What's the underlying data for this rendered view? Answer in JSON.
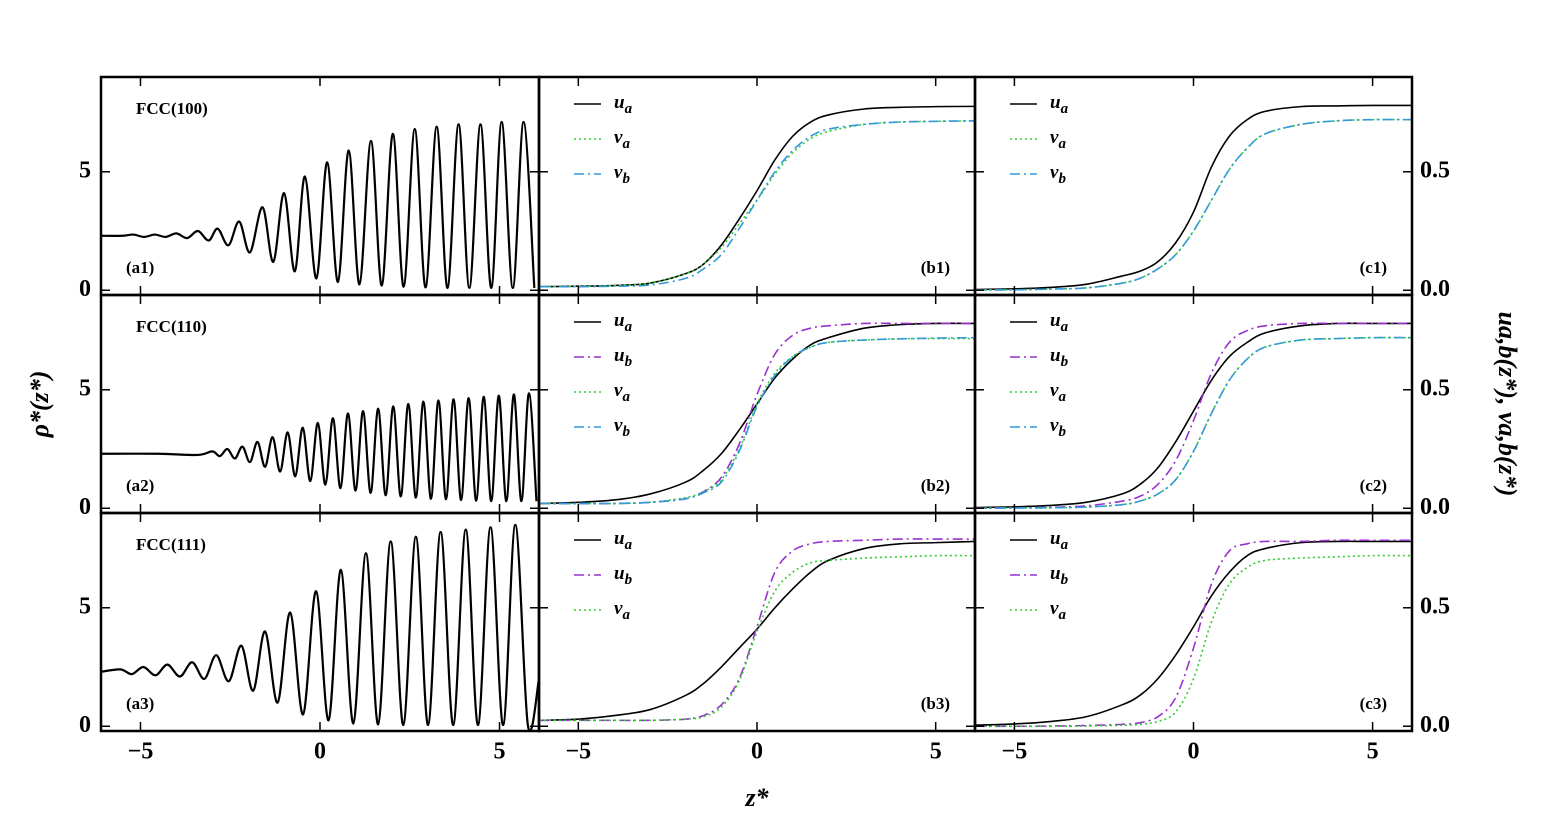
{
  "chart_data": [
    {
      "type": "line",
      "title": "FCC(100)",
      "panel_label": "(a1)",
      "label_corner": "lower left",
      "x": [
        -6.1,
        -5.5,
        -5.2,
        -4.9,
        -4.6,
        -4.3,
        -4.0,
        -3.7,
        -3.4,
        -3.1,
        -2.85,
        -2.55,
        -2.25,
        -1.95,
        -1.6,
        -1.3,
        -1.0,
        -0.7,
        -0.42,
        -0.1,
        0.2,
        0.5,
        0.8,
        1.1,
        1.42,
        1.72,
        2.03,
        2.33,
        2.64,
        2.94,
        3.25,
        3.55,
        3.86,
        4.16,
        4.47,
        4.77,
        5.06,
        5.37,
        5.67,
        5.97
      ],
      "series": [
        {
          "color": "#000000",
          "linestyle": "solid",
          "values": [
            2.3,
            2.3,
            2.35,
            2.25,
            2.35,
            2.25,
            2.4,
            2.2,
            2.5,
            2.1,
            2.6,
            1.9,
            2.9,
            1.6,
            3.5,
            1.2,
            4.1,
            0.8,
            4.8,
            0.5,
            5.4,
            0.35,
            5.9,
            0.25,
            6.3,
            0.2,
            6.6,
            0.15,
            6.8,
            0.12,
            6.9,
            0.1,
            7.0,
            0.1,
            7.0,
            0.1,
            7.1,
            0.1,
            7.1,
            0.1
          ]
        }
      ],
      "xlim": [
        -6.1,
        6.1
      ],
      "ylim": [
        -0.2,
        9.0
      ],
      "xticks": [
        -5,
        0,
        5
      ],
      "yticks": [
        0,
        5
      ],
      "ytick_labels": "left",
      "xtick_labels": false
    },
    {
      "type": "line",
      "panel_label": "(b1)",
      "label_corner": "lower right",
      "legend": "upper left",
      "x": [
        -6.1,
        -5,
        -4,
        -3,
        -2,
        -1.5,
        -1,
        -0.5,
        0,
        0.5,
        1,
        1.5,
        2,
        3,
        4,
        5,
        6.1
      ],
      "series": [
        {
          "name": "ua",
          "color": "#000000",
          "linestyle": "solid",
          "values": [
            0.015,
            0.017,
            0.02,
            0.03,
            0.07,
            0.11,
            0.19,
            0.3,
            0.42,
            0.55,
            0.65,
            0.71,
            0.74,
            0.765,
            0.772,
            0.775,
            0.776
          ]
        },
        {
          "name": "va",
          "color": "#33cc33",
          "linestyle": "dotted",
          "values": [
            0.015,
            0.017,
            0.02,
            0.03,
            0.07,
            0.11,
            0.18,
            0.28,
            0.38,
            0.49,
            0.58,
            0.64,
            0.67,
            0.7,
            0.71,
            0.713,
            0.715
          ]
        },
        {
          "name": "vb",
          "color": "#3399dd",
          "linestyle": "dashdot",
          "values": [
            0.015,
            0.015,
            0.017,
            0.022,
            0.05,
            0.09,
            0.15,
            0.26,
            0.38,
            0.5,
            0.59,
            0.65,
            0.68,
            0.7,
            0.71,
            0.713,
            0.715
          ]
        }
      ],
      "xlim": [
        -6.1,
        6.1
      ],
      "ylim": [
        -0.02,
        0.9
      ],
      "xticks": [
        -5,
        0,
        5
      ],
      "yticks": [
        0,
        0.5
      ],
      "ytick_labels": "none",
      "xtick_labels": false
    },
    {
      "type": "line",
      "panel_label": "(c1)",
      "label_corner": "lower right",
      "legend": "upper left",
      "x": [
        -6.1,
        -5,
        -4,
        -3,
        -2,
        -1.5,
        -1,
        -0.5,
        0,
        0.5,
        1,
        1.5,
        2,
        3,
        4,
        5,
        6.1
      ],
      "series": [
        {
          "name": "ua",
          "color": "#000000",
          "linestyle": "solid",
          "values": [
            0.003,
            0.006,
            0.012,
            0.025,
            0.06,
            0.08,
            0.12,
            0.2,
            0.33,
            0.52,
            0.65,
            0.72,
            0.755,
            0.775,
            0.778,
            0.78,
            0.78
          ]
        },
        {
          "name": "va",
          "color": "#33cc33",
          "linestyle": "dotted",
          "values": [
            0.001,
            0.002,
            0.005,
            0.01,
            0.03,
            0.05,
            0.09,
            0.15,
            0.25,
            0.38,
            0.51,
            0.6,
            0.66,
            0.7,
            0.715,
            0.72,
            0.72
          ]
        },
        {
          "name": "vb",
          "color": "#3399dd",
          "linestyle": "dashdot",
          "values": [
            0.001,
            0.002,
            0.005,
            0.01,
            0.03,
            0.05,
            0.09,
            0.15,
            0.25,
            0.38,
            0.51,
            0.6,
            0.66,
            0.7,
            0.715,
            0.72,
            0.72
          ]
        }
      ],
      "xlim": [
        -6.1,
        6.1
      ],
      "ylim": [
        -0.02,
        0.9
      ],
      "xticks": [
        -5,
        0,
        5
      ],
      "yticks": [
        {
          "value": 0,
          "label": "0.0"
        },
        {
          "value": 0.5,
          "label": "0.5"
        }
      ],
      "ytick_labels": "right",
      "xtick_labels": false
    },
    {
      "type": "line",
      "title": "FCC(110)",
      "panel_label": "(a2)",
      "label_corner": "lower left",
      "ylabel": "ρ*(z*)",
      "x": [
        -6.1,
        -4.5,
        -3.4,
        -3.0,
        -2.79,
        -2.58,
        -2.37,
        -2.16,
        -1.95,
        -1.74,
        -1.53,
        -1.32,
        -1.11,
        -0.9,
        -0.69,
        -0.48,
        -0.27,
        -0.06,
        0.15,
        0.36,
        0.57,
        0.78,
        0.99,
        1.2,
        1.41,
        1.62,
        1.83,
        2.04,
        2.25,
        2.46,
        2.67,
        2.88,
        3.09,
        3.3,
        3.51,
        3.72,
        3.93,
        4.14,
        4.35,
        4.56,
        4.77,
        4.98,
        5.19,
        5.4,
        5.61,
        5.82,
        6.03
      ],
      "series": [
        {
          "color": "#000000",
          "linestyle": "solid",
          "values": [
            2.3,
            2.3,
            2.25,
            2.4,
            2.2,
            2.5,
            2.1,
            2.6,
            1.95,
            2.8,
            1.75,
            3.0,
            1.55,
            3.2,
            1.35,
            3.4,
            1.15,
            3.6,
            1.0,
            3.8,
            0.85,
            4.0,
            0.75,
            4.1,
            0.65,
            4.2,
            0.55,
            4.3,
            0.5,
            4.4,
            0.45,
            4.5,
            0.4,
            4.55,
            0.38,
            4.6,
            0.35,
            4.65,
            0.32,
            4.7,
            0.3,
            4.75,
            0.3,
            4.8,
            0.3,
            4.85,
            0.3
          ]
        }
      ],
      "xlim": [
        -6.1,
        6.1
      ],
      "ylim": [
        -0.2,
        9.0
      ],
      "xticks": [
        -5,
        0,
        5
      ],
      "yticks": [
        0,
        5
      ],
      "ytick_labels": "left",
      "xtick_labels": false
    },
    {
      "type": "line",
      "panel_label": "(b2)",
      "label_corner": "lower right",
      "legend": "upper left",
      "x": [
        -6.1,
        -5,
        -4,
        -3,
        -2,
        -1.5,
        -1,
        -0.5,
        0,
        0.5,
        1,
        1.5,
        2,
        3,
        4,
        5,
        6.1
      ],
      "series": [
        {
          "name": "ua",
          "color": "#000000",
          "linestyle": "solid",
          "values": [
            0.02,
            0.025,
            0.035,
            0.06,
            0.11,
            0.16,
            0.23,
            0.33,
            0.44,
            0.55,
            0.63,
            0.69,
            0.72,
            0.76,
            0.775,
            0.78,
            0.78
          ]
        },
        {
          "name": "ub",
          "color": "#9932cc",
          "linestyle": "dashdot",
          "values": [
            0.02,
            0.02,
            0.02,
            0.025,
            0.04,
            0.07,
            0.13,
            0.27,
            0.48,
            0.65,
            0.73,
            0.76,
            0.77,
            0.78,
            0.78,
            0.78,
            0.78
          ]
        },
        {
          "name": "va",
          "color": "#33cc33",
          "linestyle": "dotted",
          "values": [
            0.02,
            0.02,
            0.02,
            0.025,
            0.045,
            0.07,
            0.12,
            0.25,
            0.44,
            0.57,
            0.64,
            0.68,
            0.7,
            0.71,
            0.715,
            0.716,
            0.716
          ]
        },
        {
          "name": "vb",
          "color": "#3399dd",
          "linestyle": "dashdot",
          "values": [
            0.02,
            0.02,
            0.02,
            0.025,
            0.04,
            0.065,
            0.11,
            0.24,
            0.43,
            0.56,
            0.64,
            0.68,
            0.7,
            0.71,
            0.715,
            0.718,
            0.72
          ]
        }
      ],
      "xlim": [
        -6.1,
        6.1
      ],
      "ylim": [
        -0.02,
        0.9
      ],
      "xticks": [
        -5,
        0,
        5
      ],
      "yticks": [
        0,
        0.5
      ],
      "ytick_labels": "none",
      "xtick_labels": false
    },
    {
      "type": "line",
      "panel_label": "(c2)",
      "label_corner": "lower right",
      "legend": "upper left",
      "ylabel": "ua,b(z*), va,b(z*)",
      "x": [
        -6.1,
        -5,
        -4,
        -3,
        -2,
        -1.5,
        -1,
        -0.5,
        0,
        0.5,
        1,
        1.5,
        2,
        3,
        4,
        5,
        6.1
      ],
      "series": [
        {
          "name": "ua",
          "color": "#000000",
          "linestyle": "solid",
          "values": [
            0.003,
            0.006,
            0.012,
            0.025,
            0.06,
            0.1,
            0.17,
            0.28,
            0.41,
            0.54,
            0.64,
            0.7,
            0.74,
            0.77,
            0.78,
            0.78,
            0.78
          ]
        },
        {
          "name": "ub",
          "color": "#9932cc",
          "linestyle": "dashdot",
          "values": [
            0.001,
            0.002,
            0.004,
            0.01,
            0.03,
            0.05,
            0.1,
            0.2,
            0.37,
            0.57,
            0.7,
            0.75,
            0.77,
            0.78,
            0.78,
            0.78,
            0.78
          ]
        },
        {
          "name": "va",
          "color": "#33cc33",
          "linestyle": "dotted",
          "values": [
            0.0,
            0.001,
            0.002,
            0.005,
            0.015,
            0.03,
            0.06,
            0.12,
            0.24,
            0.4,
            0.54,
            0.63,
            0.68,
            0.71,
            0.716,
            0.72,
            0.72
          ]
        },
        {
          "name": "vb",
          "color": "#3399dd",
          "linestyle": "dashdot",
          "values": [
            0.0,
            0.001,
            0.002,
            0.005,
            0.015,
            0.03,
            0.06,
            0.12,
            0.24,
            0.4,
            0.54,
            0.63,
            0.68,
            0.71,
            0.716,
            0.72,
            0.72
          ]
        }
      ],
      "xlim": [
        -6.1,
        6.1
      ],
      "ylim": [
        -0.02,
        0.9
      ],
      "xticks": [
        -5,
        0,
        5
      ],
      "yticks": [
        {
          "value": 0,
          "label": "0.0"
        },
        {
          "value": 0.5,
          "label": "0.5"
        }
      ],
      "ytick_labels": "right",
      "xtick_labels": false
    },
    {
      "type": "line",
      "title": "FCC(111)",
      "panel_label": "(a3)",
      "label_corner": "lower left",
      "x": [
        -6.1,
        -5.56,
        -5.24,
        -4.92,
        -4.58,
        -4.25,
        -3.9,
        -3.56,
        -3.22,
        -2.89,
        -2.54,
        -2.19,
        -1.86,
        -1.53,
        -1.18,
        -0.83,
        -0.47,
        -0.11,
        0.24,
        0.58,
        0.93,
        1.28,
        1.62,
        1.97,
        2.32,
        2.67,
        3.01,
        3.36,
        3.71,
        4.06,
        4.4,
        4.75,
        5.1,
        5.44,
        5.79,
        6.1
      ],
      "series": [
        {
          "color": "#000000",
          "linestyle": "solid",
          "values": [
            2.3,
            2.4,
            2.2,
            2.5,
            2.15,
            2.6,
            2.1,
            2.7,
            2.0,
            3.0,
            1.9,
            3.4,
            1.5,
            4.0,
            1.0,
            4.8,
            0.5,
            5.7,
            0.25,
            6.6,
            0.12,
            7.3,
            0.08,
            7.8,
            0.05,
            8.0,
            0.05,
            8.2,
            0.05,
            8.3,
            0.05,
            8.4,
            0.05,
            8.5,
            0.05,
            2.0
          ]
        }
      ],
      "xlim": [
        -6.1,
        6.1
      ],
      "ylim": [
        -0.2,
        9.0
      ],
      "xticks": [
        {
          "value": -5,
          "label": "−5"
        },
        0,
        5
      ],
      "yticks": [
        0,
        5
      ],
      "ytick_labels": "left",
      "xtick_labels": true
    },
    {
      "type": "line",
      "panel_label": "(b3)",
      "label_corner": "lower right",
      "legend": "upper left",
      "xlabel": "z*",
      "x": [
        -6.1,
        -5,
        -4,
        -3,
        -2,
        -1.5,
        -1,
        -0.5,
        0,
        0.5,
        1,
        1.5,
        2,
        3,
        4,
        5,
        6.1
      ],
      "series": [
        {
          "name": "ua",
          "color": "#000000",
          "linestyle": "solid",
          "values": [
            0.025,
            0.03,
            0.045,
            0.07,
            0.13,
            0.18,
            0.25,
            0.33,
            0.41,
            0.5,
            0.58,
            0.65,
            0.7,
            0.75,
            0.77,
            0.775,
            0.78
          ]
        },
        {
          "name": "ub",
          "color": "#9932cc",
          "linestyle": "dashdot",
          "values": [
            0.025,
            0.025,
            0.025,
            0.025,
            0.03,
            0.045,
            0.09,
            0.2,
            0.42,
            0.65,
            0.74,
            0.77,
            0.78,
            0.785,
            0.79,
            0.79,
            0.79
          ]
        },
        {
          "name": "va",
          "color": "#33cc33",
          "linestyle": "dotted",
          "values": [
            0.025,
            0.025,
            0.025,
            0.025,
            0.03,
            0.04,
            0.08,
            0.19,
            0.4,
            0.57,
            0.65,
            0.69,
            0.7,
            0.71,
            0.715,
            0.72,
            0.72
          ]
        }
      ],
      "xlim": [
        -6.1,
        6.1
      ],
      "ylim": [
        -0.02,
        0.9
      ],
      "xticks": [
        {
          "value": -5,
          "label": "−5"
        },
        0,
        5
      ],
      "yticks": [
        0,
        0.5
      ],
      "ytick_labels": "none",
      "xtick_labels": true
    },
    {
      "type": "line",
      "panel_label": "(c3)",
      "label_corner": "lower right",
      "legend": "upper left",
      "x": [
        -6.1,
        -5,
        -4,
        -3,
        -2,
        -1.5,
        -1,
        -0.5,
        0,
        0.5,
        1,
        1.5,
        2,
        3,
        4,
        5,
        6.1
      ],
      "series": [
        {
          "name": "ua",
          "color": "#000000",
          "linestyle": "solid",
          "values": [
            0.005,
            0.01,
            0.02,
            0.04,
            0.09,
            0.13,
            0.2,
            0.3,
            0.42,
            0.55,
            0.65,
            0.72,
            0.75,
            0.775,
            0.78,
            0.78,
            0.78
          ]
        },
        {
          "name": "ub",
          "color": "#9932cc",
          "linestyle": "dashdot",
          "values": [
            0,
            0,
            0.001,
            0.003,
            0.008,
            0.015,
            0.04,
            0.12,
            0.33,
            0.6,
            0.74,
            0.77,
            0.78,
            0.78,
            0.785,
            0.785,
            0.785
          ]
        },
        {
          "name": "va",
          "color": "#33cc33",
          "linestyle": "dotted",
          "values": [
            0,
            0,
            0,
            0.001,
            0.004,
            0.008,
            0.02,
            0.06,
            0.2,
            0.44,
            0.6,
            0.67,
            0.7,
            0.71,
            0.715,
            0.72,
            0.72
          ]
        }
      ],
      "xlim": [
        -6.1,
        6.1
      ],
      "ylim": [
        -0.02,
        0.9
      ],
      "xticks": [
        {
          "value": -5,
          "label": "−5"
        },
        0,
        5
      ],
      "yticks": [
        {
          "value": 0,
          "label": "0.0"
        },
        {
          "value": 0.5,
          "label": "0.5"
        }
      ],
      "ytick_labels": "right",
      "xtick_labels": true
    }
  ]
}
